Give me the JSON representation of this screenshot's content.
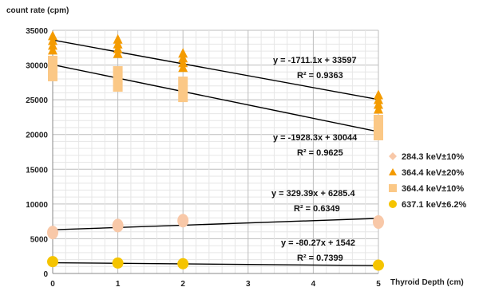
{
  "chart_data": {
    "type": "scatter",
    "ylabel": "count rate (cpm)",
    "xlabel": "Thyroid Depth  (cm)",
    "xlim": [
      0,
      5
    ],
    "ylim": [
      0,
      35000
    ],
    "x_ticks": [
      0,
      1,
      2,
      3,
      4,
      5
    ],
    "y_ticks": [
      0,
      5000,
      10000,
      15000,
      20000,
      25000,
      30000,
      35000
    ],
    "grid": true,
    "legend_position": "right",
    "series": [
      {
        "name": "284.3 keV±10%",
        "marker": "diamond",
        "color": "#f8c8a8",
        "x": [
          0,
          1,
          2,
          5
        ],
        "y": [
          5900,
          6900,
          7600,
          7400
        ],
        "trendline": {
          "slope": 329.39,
          "intercept": 6285.4
        },
        "equation": "y = 329.39x + 6285.4",
        "r2": "R² = 0.6349"
      },
      {
        "name": "364.4 keV±20%",
        "marker": "triangle",
        "color": "#f49b00",
        "x": [
          0,
          1,
          2,
          5
        ],
        "y": [
          33000,
          32500,
          30500,
          24500
        ],
        "trendline": {
          "slope": -1711.1,
          "intercept": 33597
        },
        "equation": "y = -1711.1x + 33597",
        "r2": "R² = 0.9363"
      },
      {
        "name": "364.4 keV±10%",
        "marker": "square",
        "color": "#fbc886",
        "x": [
          0,
          1,
          2,
          5
        ],
        "y": [
          29500,
          28000,
          26500,
          21000
        ],
        "trendline": {
          "slope": -1928.3,
          "intercept": 30044
        },
        "equation": "y = -1928.3x + 30044",
        "r2": "R² = 0.9625"
      },
      {
        "name": "637.1 keV±6.2%",
        "marker": "circle",
        "color": "#f5c400",
        "x": [
          0,
          1,
          2,
          5
        ],
        "y": [
          1700,
          1500,
          1400,
          1200
        ],
        "trendline": {
          "slope": -80.27,
          "intercept": 1542
        },
        "equation": "y = -80.27x + 1542",
        "r2": "R² = 0.7399"
      }
    ]
  }
}
